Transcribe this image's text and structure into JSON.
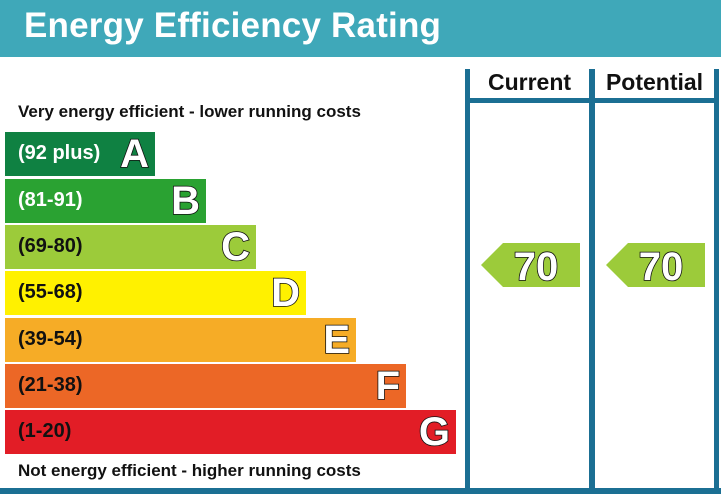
{
  "title": "Energy Efficiency Rating",
  "caption_top": "Very energy efficient - lower running costs",
  "caption_bottom": "Not energy efficient - higher running costs",
  "columns": {
    "current": "Current",
    "potential": "Potential"
  },
  "bands": [
    {
      "range": "(92 plus)",
      "letter": "A",
      "color": "#0f8142",
      "text_color": "#ffffff"
    },
    {
      "range": "(81-91)",
      "letter": "B",
      "color": "#2aa232",
      "text_color": "#ffffff"
    },
    {
      "range": "(69-80)",
      "letter": "C",
      "color": "#9ccb3a",
      "text_color": "#111111"
    },
    {
      "range": "(55-68)",
      "letter": "D",
      "color": "#fff100",
      "text_color": "#111111"
    },
    {
      "range": "(39-54)",
      "letter": "E",
      "color": "#f6ac26",
      "text_color": "#111111"
    },
    {
      "range": "(21-38)",
      "letter": "F",
      "color": "#ec6726",
      "text_color": "#111111"
    },
    {
      "range": "(1-20)",
      "letter": "G",
      "color": "#e21d26",
      "text_color": "#111111"
    }
  ],
  "ratings": {
    "current": {
      "value": "70",
      "band": "C"
    },
    "potential": {
      "value": "70",
      "band": "C"
    }
  },
  "colors": {
    "header": "#3fa8b9",
    "frame": "#1b6f93",
    "rating_arrow": "#9ccb3a"
  }
}
